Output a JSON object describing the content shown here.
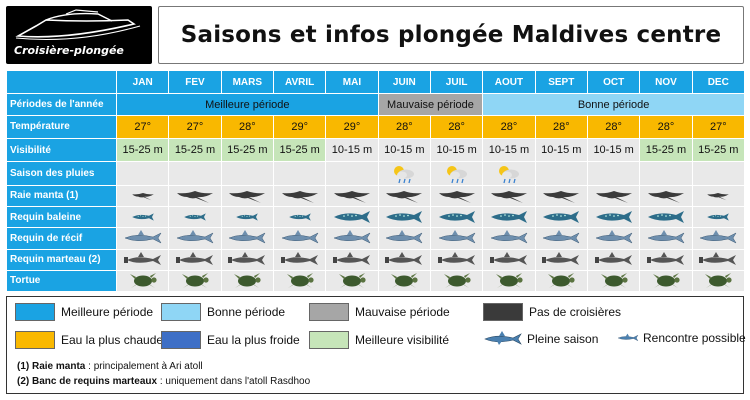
{
  "logo": {
    "text": "Croisière-plongée"
  },
  "title": "Saisons et infos plongée Maldives centre",
  "months": [
    "JAN",
    "FEV",
    "MARS",
    "AVRIL",
    "MAI",
    "JUIN",
    "JUIL",
    "AOUT",
    "SEPT",
    "OCT",
    "NOV",
    "DEC"
  ],
  "rows": {
    "periods": {
      "label": "Périodes de l'année",
      "segments": [
        {
          "text": "Meilleure période",
          "span": 5,
          "kind": "best"
        },
        {
          "text": "Mauvaise période",
          "span": 2,
          "kind": "bad"
        },
        {
          "text": "Bonne période",
          "span": 5,
          "kind": "good"
        }
      ]
    },
    "temperature": {
      "label": "Température",
      "values": [
        "27°",
        "27°",
        "28°",
        "29°",
        "29°",
        "28°",
        "28°",
        "28°",
        "28°",
        "28°",
        "28°",
        "27°"
      ],
      "warmest": [
        3,
        4
      ]
    },
    "visibility": {
      "label": "Visibilité",
      "values": [
        "15-25 m",
        "15-25 m",
        "15-25 m",
        "15-25 m",
        "10-15 m",
        "10-15 m",
        "10-15 m",
        "10-15 m",
        "10-15 m",
        "10-15 m",
        "15-25 m",
        "15-25 m"
      ],
      "best": [
        0,
        1,
        2,
        3,
        10,
        11
      ]
    },
    "rain": {
      "label": "Saison des pluies",
      "rainy": [
        5,
        6,
        7
      ]
    },
    "manta": {
      "label": "Raie manta (1)",
      "sizes": [
        "s",
        "l",
        "l",
        "l",
        "l",
        "l",
        "l",
        "l",
        "l",
        "l",
        "l",
        "s"
      ]
    },
    "whaleshark": {
      "label": "Requin baleine",
      "sizes": [
        "s",
        "s",
        "s",
        "s",
        "l",
        "l",
        "l",
        "l",
        "l",
        "l",
        "l",
        "s"
      ]
    },
    "reefshark": {
      "label": "Requin de récif",
      "sizes": [
        "l",
        "l",
        "l",
        "l",
        "l",
        "l",
        "l",
        "l",
        "l",
        "l",
        "l",
        "l"
      ]
    },
    "hammer": {
      "label": "Requin marteau (2)",
      "sizes": [
        "l",
        "l",
        "l",
        "l",
        "l",
        "l",
        "l",
        "l",
        "l",
        "l",
        "l",
        "l"
      ]
    },
    "turtle": {
      "label": "Tortue",
      "sizes": [
        "l",
        "l",
        "l",
        "l",
        "l",
        "l",
        "l",
        "l",
        "l",
        "l",
        "l",
        "l"
      ]
    }
  },
  "legend": {
    "items": [
      {
        "label": "Meilleure période",
        "color": "#1aa3e3"
      },
      {
        "label": "Bonne période",
        "color": "#8fd6f5"
      },
      {
        "label": "Mauvaise période",
        "color": "#a6a6a6"
      },
      {
        "label": "Pas de croisières",
        "color": "#3a3a3a"
      },
      {
        "label": "Eau la plus chaude",
        "color": "#f9b800"
      },
      {
        "label": "Eau la plus froide",
        "color": "#3e6fc6"
      },
      {
        "label": "Meilleure visibilité",
        "color": "#c6e5b9"
      }
    ],
    "full_season": "Pleine saison",
    "possible": "Rencontre possible",
    "note1_bold": "(1) Raie manta",
    "note1_text": " : principalement à Ari atoll",
    "note2_bold": "(2) Banc de requins marteaux",
    "note2_text": " : uniquement dans l'atoll Rasdhoo"
  },
  "colors": {
    "header_blue": "#1aa3e3",
    "light_blue": "#8fd6f5",
    "grey": "#a6a6a6",
    "warm": "#f9b800",
    "vis": "#c6e5b9"
  }
}
